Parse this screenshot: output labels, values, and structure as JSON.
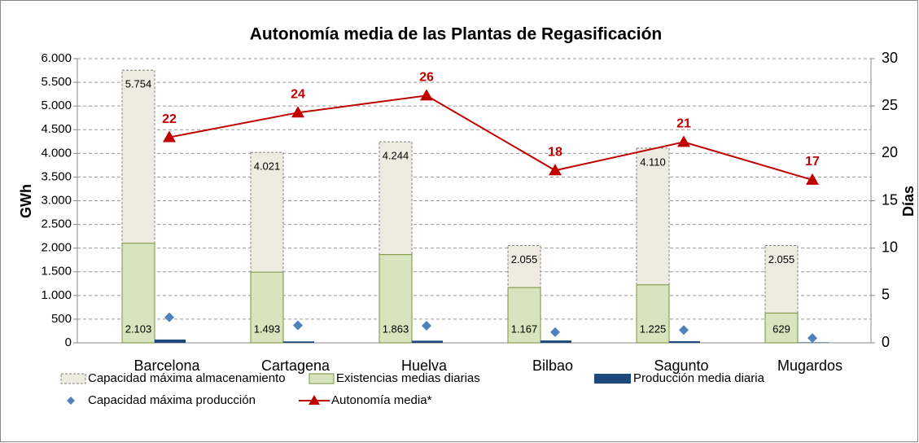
{
  "chart_data": {
    "type": "bar-line",
    "title": "Autonomía media de las Plantas de Regasificación",
    "y_label": "GWh",
    "y2_label": "Días",
    "categories": [
      "Barcelona",
      "Cartagena",
      "Huelva",
      "Bilbao",
      "Sagunto",
      "Mugardos"
    ],
    "series": [
      {
        "name": "Capacidad máxima almacenamiento",
        "kind": "bar",
        "color": "#eeece1",
        "values": [
          5754,
          4021,
          4244,
          2055,
          4110,
          2055
        ],
        "value_labels": [
          "5.754",
          "4.021",
          "4.244",
          "2.055",
          "4.110",
          "2.055"
        ]
      },
      {
        "name": "Existencias medias diarias",
        "kind": "bar",
        "color": "#d7e4bd",
        "values": [
          2103,
          1493,
          1863,
          1167,
          1225,
          629
        ],
        "value_labels": [
          "2.103",
          "1.493",
          "1.863",
          "1.167",
          "1.225",
          "629"
        ]
      },
      {
        "name": "Producción media diaria",
        "kind": "bar",
        "color": "#1f497d",
        "values": [
          70,
          30,
          45,
          50,
          35,
          10
        ]
      },
      {
        "name": "Capacidad máxima producción",
        "kind": "scatter",
        "color": "#4f81bd",
        "values": [
          540,
          370,
          360,
          225,
          270,
          100
        ]
      },
      {
        "name": "Autonomía media*",
        "kind": "line",
        "axis": "y2",
        "color": "#c00000",
        "values": [
          21.7,
          24.3,
          26.1,
          18.2,
          21.2,
          17.2
        ],
        "value_labels": [
          "22",
          "24",
          "26",
          "18",
          "21",
          "17"
        ]
      }
    ],
    "ylim": [
      0,
      6000
    ],
    "yticks": [
      0,
      500,
      {
        "value": 1000,
        "label": "1.000"
      },
      {
        "value": 1500,
        "label": "1.500"
      },
      {
        "value": 2000,
        "label": "2.000"
      },
      {
        "value": 2500,
        "label": "2.500"
      },
      {
        "value": 3000,
        "label": "3.000"
      },
      {
        "value": 3500,
        "label": "3.500"
      },
      {
        "value": 4000,
        "label": "4.000"
      },
      {
        "value": 4500,
        "label": "4.500"
      },
      {
        "value": 5000,
        "label": "5.000"
      },
      {
        "value": 5500,
        "label": "5.500"
      },
      {
        "value": 6000,
        "label": "6.000"
      }
    ],
    "y2lim": [
      0,
      30
    ],
    "y2ticks": [
      0,
      5,
      10,
      15,
      20,
      25,
      30
    ],
    "grid": true
  }
}
